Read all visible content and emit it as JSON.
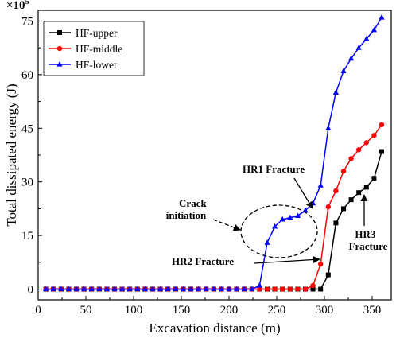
{
  "chart_data": {
    "type": "line",
    "xlabel": "Excavation distance (m)",
    "ylabel": "Total dissipated energy (J)",
    "y_multiplier": "×10",
    "y_multiplier_exp": "5",
    "xlim": [
      0,
      370
    ],
    "ylim": [
      -3,
      78
    ],
    "x_ticks": [
      0,
      50,
      100,
      150,
      200,
      250,
      300,
      350
    ],
    "y_ticks": [
      0,
      15,
      30,
      45,
      60,
      75
    ],
    "legend_position": "top-left",
    "grid": false,
    "series": [
      {
        "name": "HF-upper",
        "color": "#000000",
        "marker": "square",
        "x": [
          8,
          16,
          24,
          32,
          40,
          48,
          56,
          64,
          72,
          80,
          88,
          96,
          104,
          112,
          120,
          128,
          136,
          144,
          152,
          160,
          168,
          176,
          184,
          192,
          200,
          208,
          216,
          224,
          232,
          240,
          248,
          256,
          264,
          272,
          280,
          288,
          296,
          304,
          312,
          320,
          328,
          336,
          344,
          352,
          360
        ],
        "y": [
          0,
          0,
          0,
          0,
          0,
          0,
          0,
          0,
          0,
          0,
          0,
          0,
          0,
          0,
          0,
          0,
          0,
          0,
          0,
          0,
          0,
          0,
          0,
          0,
          0,
          0,
          0,
          0,
          0,
          0,
          0,
          0,
          0,
          0,
          0,
          0,
          0,
          4,
          18.5,
          22.5,
          25,
          27,
          28.5,
          31,
          38.5
        ]
      },
      {
        "name": "HF-middle",
        "color": "#ff0000",
        "marker": "circle",
        "x": [
          8,
          16,
          24,
          32,
          40,
          48,
          56,
          64,
          72,
          80,
          88,
          96,
          104,
          112,
          120,
          128,
          136,
          144,
          152,
          160,
          168,
          176,
          184,
          192,
          200,
          208,
          216,
          224,
          232,
          240,
          248,
          256,
          264,
          272,
          280,
          288,
          296,
          304,
          312,
          320,
          328,
          336,
          344,
          352,
          360
        ],
        "y": [
          0,
          0,
          0,
          0,
          0,
          0,
          0,
          0,
          0,
          0,
          0,
          0,
          0,
          0,
          0,
          0,
          0,
          0,
          0,
          0,
          0,
          0,
          0,
          0,
          0,
          0,
          0,
          0,
          0,
          0,
          0,
          0,
          0,
          0,
          0,
          1,
          7,
          23,
          27.5,
          33,
          36.5,
          39,
          41,
          43,
          46
        ]
      },
      {
        "name": "HF-lower",
        "color": "#0000ff",
        "marker": "triangle",
        "x": [
          8,
          16,
          24,
          32,
          40,
          48,
          56,
          64,
          72,
          80,
          88,
          96,
          104,
          112,
          120,
          128,
          136,
          144,
          152,
          160,
          168,
          176,
          184,
          192,
          200,
          208,
          216,
          224,
          232,
          240,
          248,
          256,
          264,
          272,
          280,
          288,
          296,
          304,
          312,
          320,
          328,
          336,
          344,
          352,
          360
        ],
        "y": [
          0,
          0,
          0,
          0,
          0,
          0,
          0,
          0,
          0,
          0,
          0,
          0,
          0,
          0,
          0,
          0,
          0,
          0,
          0,
          0,
          0,
          0,
          0,
          0,
          0,
          0,
          0,
          0,
          1,
          13,
          17.5,
          19.5,
          20,
          20.5,
          22,
          24,
          29,
          45,
          55,
          61,
          64.5,
          67.5,
          70,
          72.5,
          76
        ]
      }
    ],
    "annotations": [
      {
        "id": "crack-initiation",
        "lines": [
          "Crack",
          "initiation"
        ]
      },
      {
        "id": "hr1-fracture",
        "lines": [
          "HR1 Fracture"
        ]
      },
      {
        "id": "hr2-fracture",
        "lines": [
          "HR2 Fracture"
        ]
      },
      {
        "id": "hr3-fracture",
        "lines": [
          "HR3",
          "Fracture"
        ]
      }
    ]
  }
}
